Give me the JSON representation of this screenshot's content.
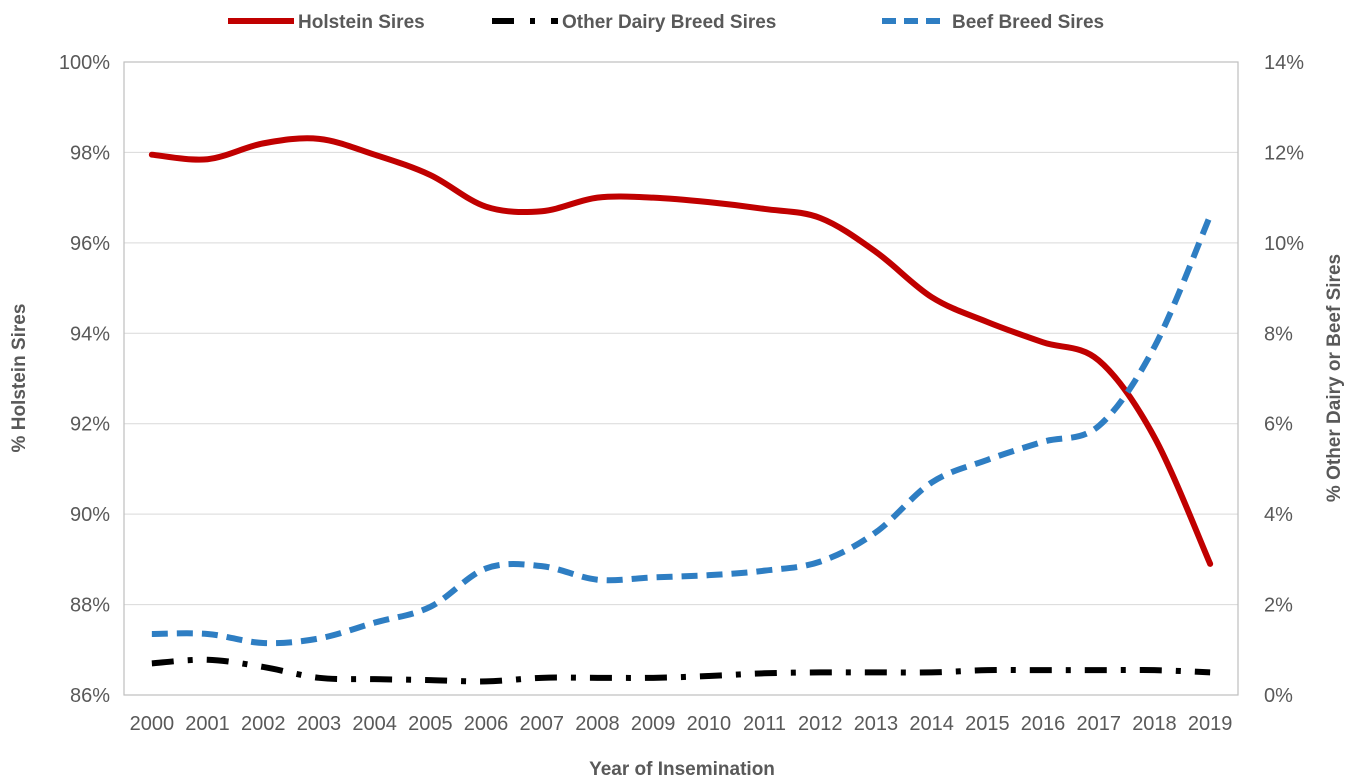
{
  "chart_data": {
    "type": "line",
    "title": "",
    "xlabel": "Year of Insemination",
    "ylabel_left": "% Holstein Sires",
    "ylabel_right": "% Other Dairy or Beef Sires",
    "x": [
      "2000",
      "2001",
      "2002",
      "2003",
      "2004",
      "2005",
      "2006",
      "2007",
      "2008",
      "2009",
      "2010",
      "2011",
      "2012",
      "2013",
      "2014",
      "2015",
      "2016",
      "2017",
      "2018",
      "2019"
    ],
    "ylim_left": [
      86,
      100
    ],
    "ylim_right": [
      0,
      14
    ],
    "y_ticks_left": [
      "86%",
      "88%",
      "90%",
      "92%",
      "94%",
      "96%",
      "98%",
      "100%"
    ],
    "y_ticks_right": [
      "0%",
      "2%",
      "4%",
      "6%",
      "8%",
      "10%",
      "12%",
      "14%"
    ],
    "grid": true,
    "legend_position": "top",
    "series": [
      {
        "name": "Holstein Sires",
        "axis": "left",
        "color": "#c00000",
        "style": "solid",
        "values": [
          97.95,
          97.85,
          98.2,
          98.3,
          97.95,
          97.5,
          96.8,
          96.7,
          97.0,
          97.0,
          96.9,
          96.75,
          96.55,
          95.8,
          94.8,
          94.25,
          93.8,
          93.4,
          91.7,
          88.9
        ]
      },
      {
        "name": "Other Dairy Breed Sires",
        "axis": "right",
        "color": "#000000",
        "style": "dashdot",
        "values": [
          0.7,
          0.78,
          0.62,
          0.38,
          0.35,
          0.33,
          0.3,
          0.38,
          0.38,
          0.38,
          0.42,
          0.48,
          0.5,
          0.5,
          0.5,
          0.55,
          0.55,
          0.55,
          0.55,
          0.5
        ]
      },
      {
        "name": "Beef Breed Sires",
        "axis": "right",
        "color": "#2e7ec3",
        "style": "dashed",
        "values": [
          1.35,
          1.35,
          1.15,
          1.25,
          1.6,
          1.95,
          2.8,
          2.85,
          2.55,
          2.6,
          2.65,
          2.75,
          2.95,
          3.6,
          4.7,
          5.2,
          5.6,
          5.95,
          7.7,
          10.6
        ]
      }
    ]
  }
}
